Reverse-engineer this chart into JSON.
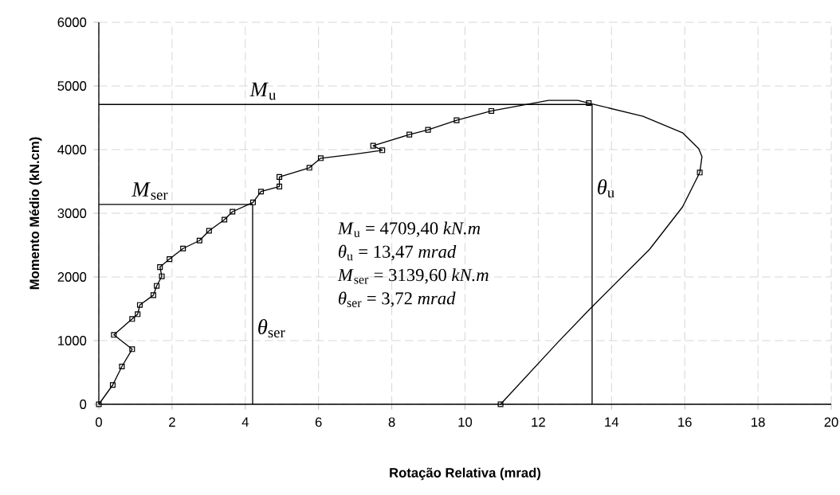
{
  "chart_data": {
    "type": "line",
    "xlabel": "Rotação Relativa (mrad)",
    "ylabel": "Momento Médio (kN.cm)",
    "xlim": [
      0,
      20
    ],
    "ylim": [
      0,
      6000
    ],
    "xticks": [
      0,
      2,
      4,
      6,
      8,
      10,
      12,
      14,
      16,
      18,
      20
    ],
    "yticks": [
      0,
      1000,
      2000,
      3000,
      4000,
      5000,
      6000
    ],
    "grid": true,
    "series": [
      {
        "color": "#000000",
        "marker": "none",
        "x": [
          0,
          0.38,
          0.63,
          0.91,
          0.41,
          0.91,
          1.06,
          1.12,
          1.49,
          1.58,
          1.72,
          1.67,
          1.93,
          2.3,
          2.75,
          3.01,
          3.43,
          3.65,
          4.21,
          4.43,
          4.93,
          4.93,
          5.75,
          6.06,
          7.0,
          7.74,
          7.49,
          8.48,
          8.99,
          9.77,
          10.72,
          11.81,
          12.28,
          13.08,
          13.38,
          14.86,
          15.94,
          16.38,
          16.47,
          16.41,
          15.94,
          15.04,
          13.41,
          12.54,
          10.97
        ],
        "values": [
          0,
          303,
          594,
          865,
          1090,
          1340,
          1415,
          1560,
          1714,
          1860,
          2010,
          2155,
          2280,
          2447,
          2572,
          2725,
          2900,
          3025,
          3171,
          3341,
          3420,
          3570,
          3715,
          3865,
          3930,
          3990,
          4061,
          4236,
          4311,
          4461,
          4607,
          4723,
          4773,
          4773,
          4731,
          4523,
          4265,
          4015,
          3890,
          3640,
          3100,
          2434,
          1498,
          977,
          0
        ]
      },
      {
        "type": "scatter",
        "color": "#000000",
        "marker": "square",
        "x": [
          0,
          0.38,
          0.63,
          0.91,
          0.41,
          0.91,
          1.06,
          1.12,
          1.49,
          1.58,
          1.72,
          1.67,
          1.93,
          2.3,
          2.75,
          3.01,
          3.43,
          3.65,
          4.21,
          4.43,
          4.93,
          4.93,
          5.75,
          6.06,
          7.74,
          7.49,
          8.48,
          8.99,
          9.77,
          10.72,
          13.38,
          16.41,
          10.97
        ],
        "values": [
          0,
          303,
          594,
          865,
          1090,
          1340,
          1415,
          1560,
          1714,
          1860,
          2010,
          2155,
          2280,
          2447,
          2572,
          2725,
          2900,
          3025,
          3171,
          3341,
          3420,
          3570,
          3715,
          3865,
          3990,
          4061,
          4236,
          4311,
          4461,
          4607,
          4731,
          3640,
          0
        ]
      }
    ],
    "ref_lines": [
      {
        "axis": "y",
        "value": 4709.4,
        "label": "*M*$_{u}$",
        "color": "#000000"
      },
      {
        "axis": "x",
        "value": 13.47,
        "label": "*θ*$_{u}$",
        "color": "#000000"
      },
      {
        "axis": "y",
        "value": 3139.6,
        "label": "*M*$_{ser}$",
        "color": "#000000"
      },
      {
        "axis": "x",
        "value": 4.2,
        "label": "*θ*$_{ser}$",
        "color": "#000000"
      }
    ],
    "annotations": [
      "*M*$_{u}$ = 4709,40 *kN.m*",
      "*θ*$_{u}$ = 13,47 *mrad*",
      "*M*$_{ser}$ = 3139,60 *kN.m*",
      "*θ*$_{ser}$ = 3,72 *mrad*"
    ]
  }
}
